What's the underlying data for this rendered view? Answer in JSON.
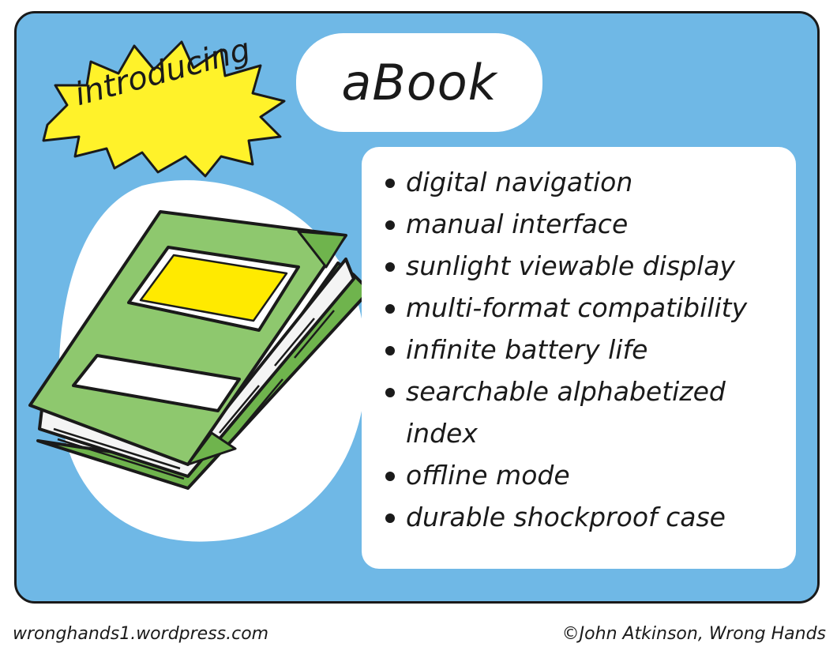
{
  "badge": {
    "text": "introducing"
  },
  "title": {
    "text": "aBook"
  },
  "features": [
    "digital navigation",
    "manual interface",
    "sunlight viewable display",
    "multi-format compatibility",
    "infinite battery life",
    "searchable alphabetized index",
    "offline mode",
    "durable shockproof case"
  ],
  "footer": {
    "website": "wronghands1.wordpress.com",
    "copyright": "©John Atkinson, Wrong Hands"
  },
  "colors": {
    "panel": "#6fb8e6",
    "starburst": "#fff22a",
    "book_cover": "#8ec86e",
    "book_label": "#ffea00",
    "ink": "#1a1a1a"
  }
}
